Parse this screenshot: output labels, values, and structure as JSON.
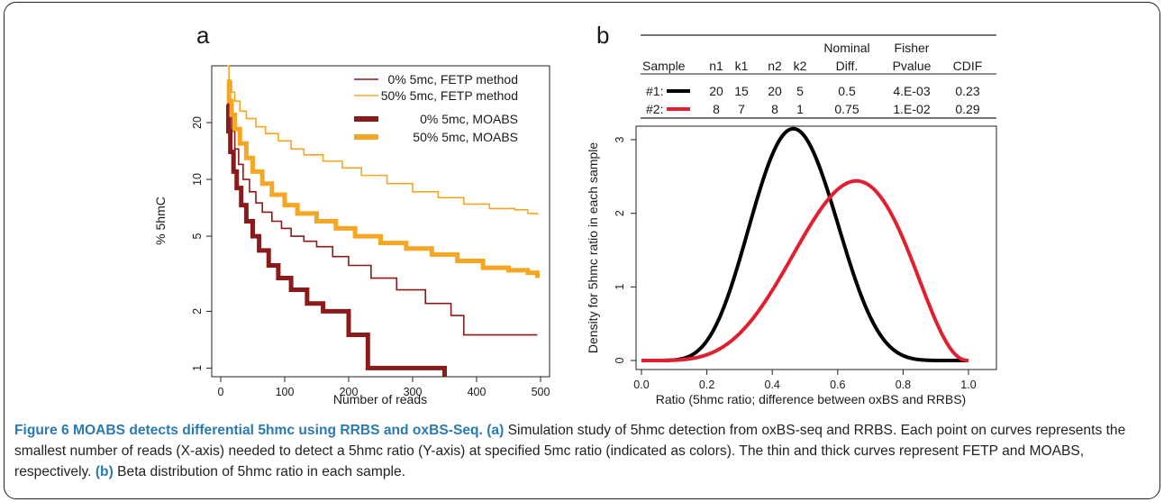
{
  "chart_data": [
    {
      "panel_label": "a",
      "type": "line",
      "xlabel": "Number of reads",
      "ylabel": "% 5hmC",
      "xlim": [
        0,
        500
      ],
      "ylim": [
        0.9,
        40
      ],
      "yscale": "log",
      "xticks": [
        0,
        100,
        200,
        300,
        400,
        500
      ],
      "yticks": [
        1,
        2,
        5,
        10,
        20
      ],
      "legend_position": "top-right",
      "series": [
        {
          "name": "0% 5mc, FETP method",
          "color": "#8b1a1a",
          "style": "thin",
          "x": [
            10,
            13,
            17,
            22,
            28,
            35,
            45,
            55,
            65,
            80,
            95,
            110,
            130,
            150,
            175,
            200,
            235,
            275,
            320,
            360,
            380,
            420,
            460,
            495
          ],
          "y": [
            30,
            23,
            18,
            14.5,
            12,
            10,
            8.6,
            7.5,
            6.7,
            6.0,
            5.5,
            5.0,
            4.7,
            4.4,
            3.9,
            3.5,
            3.0,
            2.6,
            2.2,
            1.9,
            1.5,
            1.5,
            1.5,
            1.5
          ]
        },
        {
          "name": "50% 5mc, FETP method",
          "color": "#f5a623",
          "style": "thin",
          "x": [
            10,
            13,
            17,
            22,
            30,
            40,
            55,
            70,
            90,
            110,
            130,
            160,
            190,
            220,
            260,
            300,
            340,
            380,
            420,
            460,
            480,
            495
          ],
          "y": [
            40,
            33,
            29,
            26,
            23,
            21,
            19,
            17.5,
            16,
            14.5,
            13.5,
            12.5,
            11.5,
            10.5,
            9.5,
            8.6,
            8.0,
            7.4,
            7.0,
            6.9,
            6.6,
            6.5
          ]
        },
        {
          "name": "0% 5mc, MOABS",
          "color": "#8b1a1a",
          "style": "thick",
          "x": [
            10,
            12,
            15,
            20,
            25,
            32,
            40,
            50,
            60,
            75,
            90,
            110,
            135,
            160,
            180,
            200,
            230,
            260,
            300,
            340,
            350
          ],
          "y": [
            25,
            18,
            14,
            11,
            9,
            7.3,
            6.0,
            5.0,
            4.2,
            3.5,
            3.0,
            2.6,
            2.2,
            2.0,
            2.0,
            1.5,
            1.0,
            1.0,
            1.0,
            1.0,
            0.9
          ]
        },
        {
          "name": "50% 5mc, MOABS",
          "color": "#f5a623",
          "style": "thick",
          "x": [
            10,
            13,
            17,
            22,
            30,
            40,
            50,
            65,
            80,
            100,
            120,
            150,
            180,
            210,
            250,
            290,
            330,
            370,
            410,
            450,
            480,
            495
          ],
          "y": [
            33,
            26,
            22,
            18.5,
            15.5,
            13,
            11,
            9.5,
            8.3,
            7.3,
            6.6,
            6.0,
            5.5,
            5.0,
            4.6,
            4.3,
            4.0,
            3.7,
            3.4,
            3.3,
            3.2,
            3.0
          ]
        }
      ]
    },
    {
      "panel_label": "b",
      "type": "line",
      "xlabel": "Ratio (5hmc ratio; difference between oxBS and RRBS)",
      "ylabel": "Density for 5hmc ratio in each sample",
      "xlim": [
        0,
        1
      ],
      "ylim": [
        0,
        3
      ],
      "xticks": [
        0.0,
        0.2,
        0.4,
        0.6,
        0.8,
        1.0
      ],
      "xtick_labels": [
        "0.0",
        "0.2",
        "0.4",
        "0.6",
        "0.8",
        "1.0"
      ],
      "yticks": [
        0,
        1,
        2,
        3
      ],
      "series": [
        {
          "name": "#1:",
          "color": "#000000",
          "distribution": "beta",
          "alpha": 7.5,
          "beta": 8.5
        },
        {
          "name": "#2:",
          "color": "#e0202f",
          "distribution": "beta",
          "alpha": 5.6,
          "beta": 3.4
        }
      ],
      "table": {
        "header_top": [
          "",
          "",
          "",
          "",
          "",
          "Nominal",
          "Fisher",
          ""
        ],
        "header": [
          "Sample",
          "n1",
          "k1",
          "n2",
          "k2",
          "Diff.",
          "Pvalue",
          "CDIF"
        ],
        "rows": [
          [
            "#1:",
            "20",
            "15",
            "20",
            "5",
            "0.5",
            "4.E-03",
            "0.23"
          ],
          [
            "#2:",
            "8",
            "7",
            "8",
            "1",
            "0.75",
            "1.E-02",
            "0.29"
          ]
        ]
      }
    }
  ],
  "caption": {
    "title": "Figure 6 MOABS detects differential 5hmc using RRBS and oxBS-Seq.",
    "a_label": "(a)",
    "a_text": "Simulation study of 5hmc detection from oxBS-seq and RRBS. Each point on curves represents the smallest number of reads (X-axis) needed to detect a 5hmc ratio (Y-axis) at specified 5mc ratio (indicated as colors). The thin and thick curves represent FETP and MOABS, respectively.",
    "b_label": "(b)",
    "b_text": "Beta distribution of 5hmc ratio in each sample."
  }
}
